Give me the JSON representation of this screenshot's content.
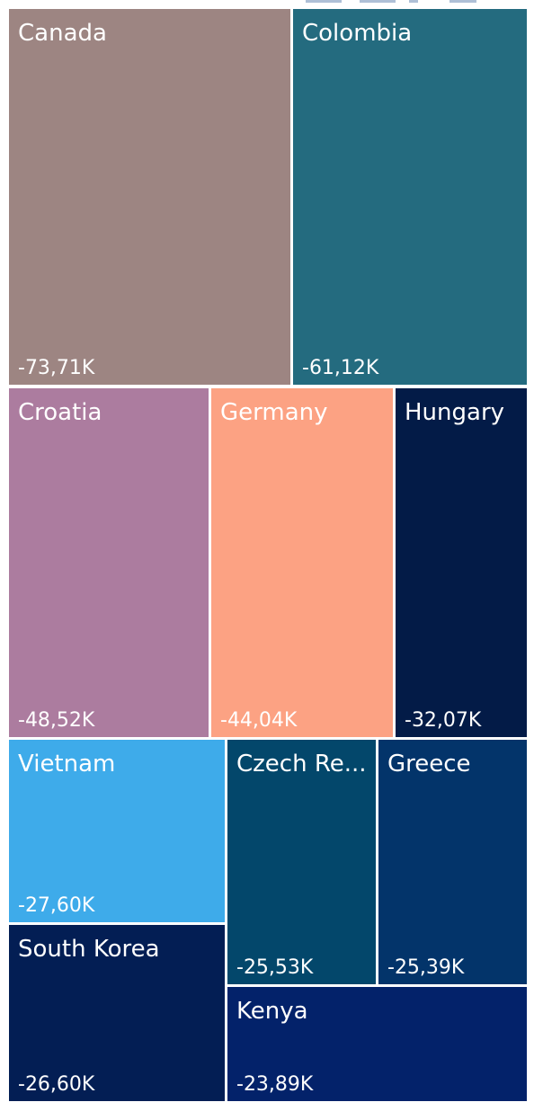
{
  "chart_data": {
    "type": "treemap",
    "title": "",
    "categories": [
      "Canada",
      "Colombia",
      "Croatia",
      "Germany",
      "Hungary",
      "Vietnam",
      "Czech Re...",
      "Greece",
      "South Korea",
      "Kenya"
    ],
    "values": [
      -73.71,
      -61.12,
      -48.52,
      -44.04,
      -32.07,
      -27.6,
      -25.53,
      -25.39,
      -26.6,
      -23.89
    ],
    "value_labels": [
      "-73,71K",
      "-61,12K",
      "-48,52K",
      "-44,04K",
      "-32,07K",
      "-27,60K",
      "-25,53K",
      "-25,39K",
      "-26,60K",
      "-23,89K"
    ],
    "colors": [
      "#9d8582",
      "#246b7f",
      "#ac7c9f",
      "#fca283",
      "#031b47",
      "#3eabea",
      "#03476b",
      "#03346a",
      "#031e54",
      "#03226a"
    ]
  }
}
